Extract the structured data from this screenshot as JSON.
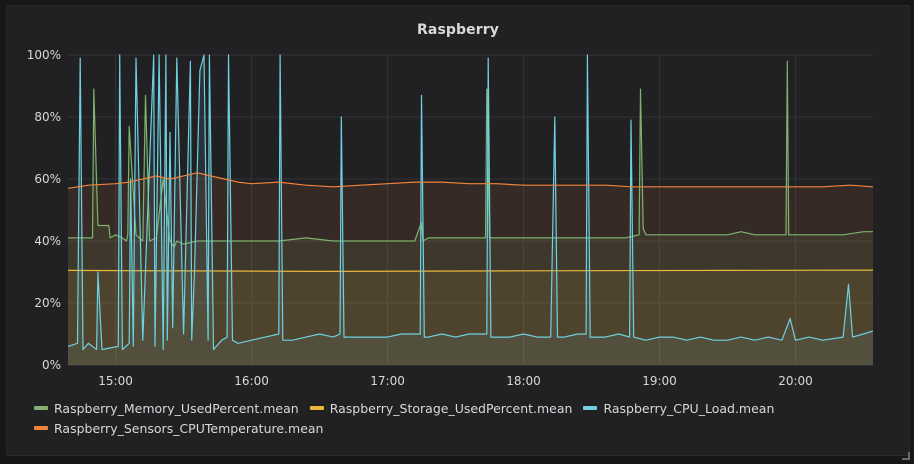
{
  "panel": {
    "title": "Raspberry"
  },
  "chart_data": {
    "type": "line",
    "title": "Raspberry",
    "x_ticks": [
      "15:00",
      "16:00",
      "17:00",
      "18:00",
      "19:00",
      "20:00"
    ],
    "y_ticks": [
      "0%",
      "20%",
      "40%",
      "60%",
      "80%",
      "100%"
    ],
    "ylim": [
      0,
      100
    ],
    "xlim_hours": [
      14.65,
      20.57
    ],
    "grid": true,
    "legend_position": "bottom",
    "series": [
      {
        "name": "Raspberry_Memory_UsedPercent.mean",
        "color": "#7eb26d",
        "x": [
          14.65,
          14.83,
          14.84,
          14.87,
          14.88,
          14.95,
          14.96,
          15.0,
          15.05,
          15.08,
          15.09,
          15.1,
          15.15,
          15.2,
          15.22,
          15.25,
          15.3,
          15.35,
          15.4,
          15.43,
          15.45,
          15.5,
          15.6,
          15.8,
          16.0,
          16.2,
          16.4,
          16.6,
          16.8,
          17.0,
          17.2,
          17.25,
          17.26,
          17.3,
          17.5,
          17.72,
          17.73,
          17.75,
          18.0,
          18.3,
          18.6,
          18.75,
          18.85,
          18.86,
          18.88,
          18.9,
          19.2,
          19.5,
          19.6,
          19.7,
          19.93,
          19.94,
          19.95,
          20.2,
          20.35,
          20.5,
          20.57
        ],
        "values": [
          41,
          41,
          89,
          45,
          45,
          45,
          41,
          42,
          41,
          40,
          42,
          77,
          42,
          40,
          87,
          40,
          41,
          60,
          40,
          38,
          40,
          39,
          40,
          40,
          40,
          40,
          41,
          40,
          40,
          40,
          40,
          46,
          40,
          41,
          41,
          41,
          89,
          41,
          41,
          41,
          41,
          41,
          42,
          89,
          44,
          42,
          42,
          42,
          43,
          42,
          42,
          98,
          42,
          42,
          42,
          43,
          43
        ]
      },
      {
        "name": "Raspberry_Storage_UsedPercent.mean",
        "color": "#eab839",
        "x": [
          14.65,
          16.5,
          18.0,
          19.5,
          20.57
        ],
        "values": [
          30.5,
          30.2,
          30.4,
          30.5,
          30.6
        ]
      },
      {
        "name": "Raspberry_CPU_Load.mean",
        "color": "#6ed0e0",
        "x": [
          14.65,
          14.72,
          14.74,
          14.76,
          14.8,
          14.86,
          14.87,
          14.9,
          15.02,
          15.03,
          15.05,
          15.1,
          15.11,
          15.13,
          15.15,
          15.2,
          15.28,
          15.29,
          15.32,
          15.35,
          15.37,
          15.38,
          15.4,
          15.42,
          15.45,
          15.5,
          15.55,
          15.56,
          15.58,
          15.62,
          15.65,
          15.68,
          15.69,
          15.72,
          15.78,
          15.82,
          15.83,
          15.86,
          15.9,
          16.0,
          16.1,
          16.2,
          16.21,
          16.23,
          16.3,
          16.4,
          16.5,
          16.6,
          16.65,
          16.66,
          16.68,
          16.8,
          17.0,
          17.1,
          17.24,
          17.25,
          17.27,
          17.3,
          17.4,
          17.5,
          17.6,
          17.73,
          17.74,
          17.76,
          17.9,
          18.0,
          18.1,
          18.2,
          18.23,
          18.25,
          18.3,
          18.4,
          18.46,
          18.47,
          18.49,
          18.6,
          18.7,
          18.78,
          18.79,
          18.81,
          18.9,
          19.0,
          19.1,
          19.2,
          19.3,
          19.4,
          19.5,
          19.6,
          19.7,
          19.8,
          19.9,
          19.96,
          20.0,
          20.1,
          20.2,
          20.35,
          20.39,
          20.42,
          20.5,
          20.57
        ],
        "values": [
          6,
          7,
          99,
          5,
          7,
          5,
          30,
          5,
          6,
          100,
          5,
          7,
          60,
          6,
          99,
          8,
          100,
          6,
          100,
          5,
          100,
          8,
          75,
          12,
          99,
          10,
          98,
          8,
          30,
          95,
          100,
          8,
          100,
          5,
          8,
          9,
          100,
          8,
          7,
          8,
          9,
          10,
          100,
          8,
          8,
          9,
          10,
          9,
          10,
          80,
          9,
          9,
          9,
          10,
          10,
          87,
          9,
          9,
          10,
          9,
          10,
          10,
          99,
          9,
          9,
          10,
          9,
          9,
          80,
          9,
          9,
          10,
          10,
          100,
          9,
          9,
          10,
          9,
          79,
          9,
          8,
          9,
          9,
          8,
          9,
          8,
          8,
          9,
          8,
          9,
          8,
          15,
          8,
          9,
          8,
          9,
          26,
          9,
          10,
          11
        ]
      },
      {
        "name": "Raspberry_Sensors_CPUTemperature.mean",
        "color": "#ef843c",
        "x": [
          14.65,
          14.8,
          15.0,
          15.1,
          15.2,
          15.3,
          15.4,
          15.5,
          15.6,
          15.7,
          15.8,
          15.9,
          16.0,
          16.2,
          16.4,
          16.6,
          16.8,
          17.0,
          17.2,
          17.4,
          17.6,
          17.8,
          18.0,
          18.2,
          18.4,
          18.6,
          18.8,
          19.0,
          19.2,
          19.4,
          19.6,
          19.8,
          20.0,
          20.2,
          20.4,
          20.57
        ],
        "values": [
          57,
          58,
          58.5,
          59,
          60,
          61,
          60,
          61,
          62,
          61,
          60,
          59,
          58.5,
          59,
          58,
          57.5,
          58,
          58.5,
          59,
          59,
          58.5,
          58.5,
          58,
          58,
          58,
          58,
          57.5,
          57.5,
          57.5,
          57.5,
          57.5,
          57.5,
          57.5,
          57.5,
          58,
          57.5
        ]
      }
    ]
  },
  "legend": {
    "items": [
      {
        "label": "Raspberry_Memory_UsedPercent.mean",
        "color": "#7eb26d"
      },
      {
        "label": "Raspberry_Storage_UsedPercent.mean",
        "color": "#eab839"
      },
      {
        "label": "Raspberry_CPU_Load.mean",
        "color": "#6ed0e0"
      },
      {
        "label": "Raspberry_Sensors_CPUTemperature.mean",
        "color": "#ef843c"
      }
    ]
  }
}
